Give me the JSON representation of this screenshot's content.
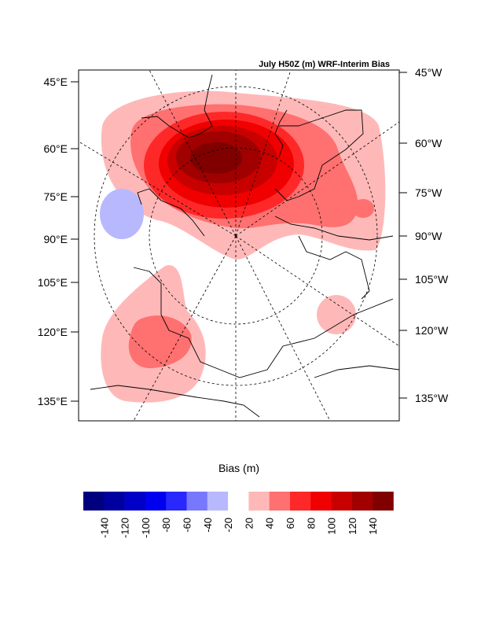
{
  "title": "July H50Z (m) WRF-Interim Bias",
  "left_labels": [
    "45°E",
    "60°E",
    "75°E",
    "90°E",
    "105°E",
    "120°E",
    "135°E"
  ],
  "right_labels": [
    "45°W",
    "60°W",
    "75°W",
    "90°W",
    "105°W",
    "120°W",
    "135°W"
  ],
  "colorbar": {
    "title": "Bias (m)",
    "labels": [
      "-140",
      "-120",
      "-100",
      "-80",
      "-60",
      "-40",
      "-20",
      "20",
      "40",
      "60",
      "80",
      "100",
      "120",
      "140"
    ],
    "colors": [
      "#00007f",
      "#0000a0",
      "#0000c8",
      "#0000f0",
      "#2828ff",
      "#7878ff",
      "#b8b8ff",
      "#ffffff",
      "#ffb8b8",
      "#ff7070",
      "#ff2828",
      "#f00000",
      "#c80000",
      "#a00000",
      "#800000"
    ]
  }
}
